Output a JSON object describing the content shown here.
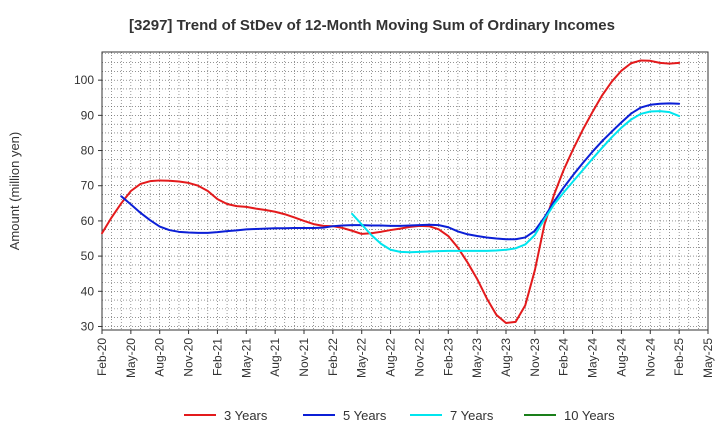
{
  "chart_data": {
    "type": "line",
    "title": "[3297]  Trend of StDev of 12-Month Moving Sum of Ordinary Incomes",
    "xlabel": "",
    "ylabel": "Amount (million yen)",
    "x_tick_labels": [
      "Feb-20",
      "May-20",
      "Aug-20",
      "Nov-20",
      "Feb-21",
      "May-21",
      "Aug-21",
      "Nov-21",
      "Feb-22",
      "May-22",
      "Aug-22",
      "Nov-22",
      "Feb-23",
      "May-23",
      "Aug-23",
      "Nov-23",
      "Feb-24",
      "May-24",
      "Aug-24",
      "Nov-24",
      "Feb-25",
      "May-25"
    ],
    "y_ticks": [
      30,
      40,
      50,
      60,
      70,
      80,
      90,
      100
    ],
    "ylim": [
      29,
      108
    ],
    "x_range_months": [
      0,
      63
    ],
    "grid": true,
    "legend_position": "bottom",
    "series": [
      {
        "name": "3 Years",
        "color": "#e31a1c",
        "x": [
          0,
          1,
          2,
          3,
          4,
          5,
          6,
          7,
          8,
          9,
          10,
          11,
          12,
          13,
          14,
          15,
          16,
          17,
          18,
          19,
          20,
          21,
          22,
          23,
          24,
          25,
          26,
          27,
          28,
          29,
          30,
          31,
          32,
          33,
          34,
          35,
          36,
          37,
          38,
          39,
          40,
          41,
          42,
          43,
          44,
          45,
          46,
          47,
          48,
          49,
          50,
          51,
          52,
          53,
          54,
          55,
          56,
          57,
          58,
          59,
          60
        ],
        "values": [
          56.5,
          61,
          65,
          68.5,
          70.5,
          71.3,
          71.5,
          71.4,
          71.2,
          70.8,
          70,
          68.5,
          66.2,
          64.8,
          64.2,
          64,
          63.5,
          63.1,
          62.6,
          61.9,
          61,
          60,
          59.1,
          58.6,
          58.5,
          58,
          57.2,
          56.3,
          56.5,
          56.9,
          57.4,
          57.8,
          58.3,
          58.6,
          58.5,
          57.6,
          55.7,
          52.4,
          48.2,
          43.5,
          38,
          33.3,
          31,
          31.3,
          36,
          46,
          59,
          67.5,
          74.5,
          80.5,
          86,
          91,
          95.7,
          99.6,
          102.7,
          104.8,
          105.6,
          105.5,
          104.9,
          104.7,
          104.9
        ]
      },
      {
        "name": "5 Years",
        "color": "#0b1fd6",
        "x": [
          2,
          3,
          4,
          5,
          6,
          7,
          8,
          9,
          10,
          11,
          12,
          13,
          14,
          15,
          16,
          17,
          18,
          19,
          20,
          21,
          22,
          23,
          24,
          25,
          26,
          27,
          28,
          29,
          30,
          31,
          32,
          33,
          34,
          35,
          36,
          37,
          38,
          39,
          40,
          41,
          42,
          43,
          44,
          45,
          46,
          47,
          48,
          49,
          50,
          51,
          52,
          53,
          54,
          55,
          56,
          57,
          58,
          59,
          60
        ],
        "values": [
          67,
          64.7,
          62.3,
          60.2,
          58.4,
          57.4,
          56.9,
          56.7,
          56.6,
          56.6,
          56.8,
          57.1,
          57.3,
          57.6,
          57.7,
          57.8,
          57.9,
          57.9,
          58,
          58,
          58,
          58.1,
          58.5,
          58.7,
          58.8,
          58.8,
          58.7,
          58.7,
          58.6,
          58.6,
          58.7,
          58.8,
          58.9,
          58.8,
          58.2,
          57,
          56.2,
          55.7,
          55.3,
          55,
          54.8,
          54.8,
          55.3,
          57.2,
          61,
          65.5,
          69.5,
          73.1,
          76.5,
          79.7,
          82.7,
          85.4,
          88,
          90.5,
          92.2,
          93,
          93.3,
          93.4,
          93.3
        ]
      },
      {
        "name": "7 Years",
        "color": "#00e5ee",
        "x": [
          26,
          27,
          28,
          29,
          30,
          31,
          32,
          33,
          34,
          35,
          36,
          37,
          38,
          39,
          40,
          41,
          42,
          43,
          44,
          45,
          46,
          47,
          48,
          49,
          50,
          51,
          52,
          53,
          54,
          55,
          56,
          57,
          58,
          59,
          60
        ],
        "values": [
          62,
          59,
          56,
          53.5,
          51.8,
          51.2,
          51.1,
          51.2,
          51.3,
          51.4,
          51.5,
          51.5,
          51.5,
          51.5,
          51.5,
          51.6,
          51.8,
          52.2,
          53.3,
          56,
          60.5,
          64.7,
          68.1,
          71.3,
          74.5,
          77.7,
          80.8,
          83.8,
          86.5,
          88.8,
          90.4,
          91.1,
          91.2,
          90.9,
          89.8
        ]
      },
      {
        "name": "10 Years",
        "color": "#1a7f1a",
        "x": [],
        "values": []
      }
    ]
  }
}
